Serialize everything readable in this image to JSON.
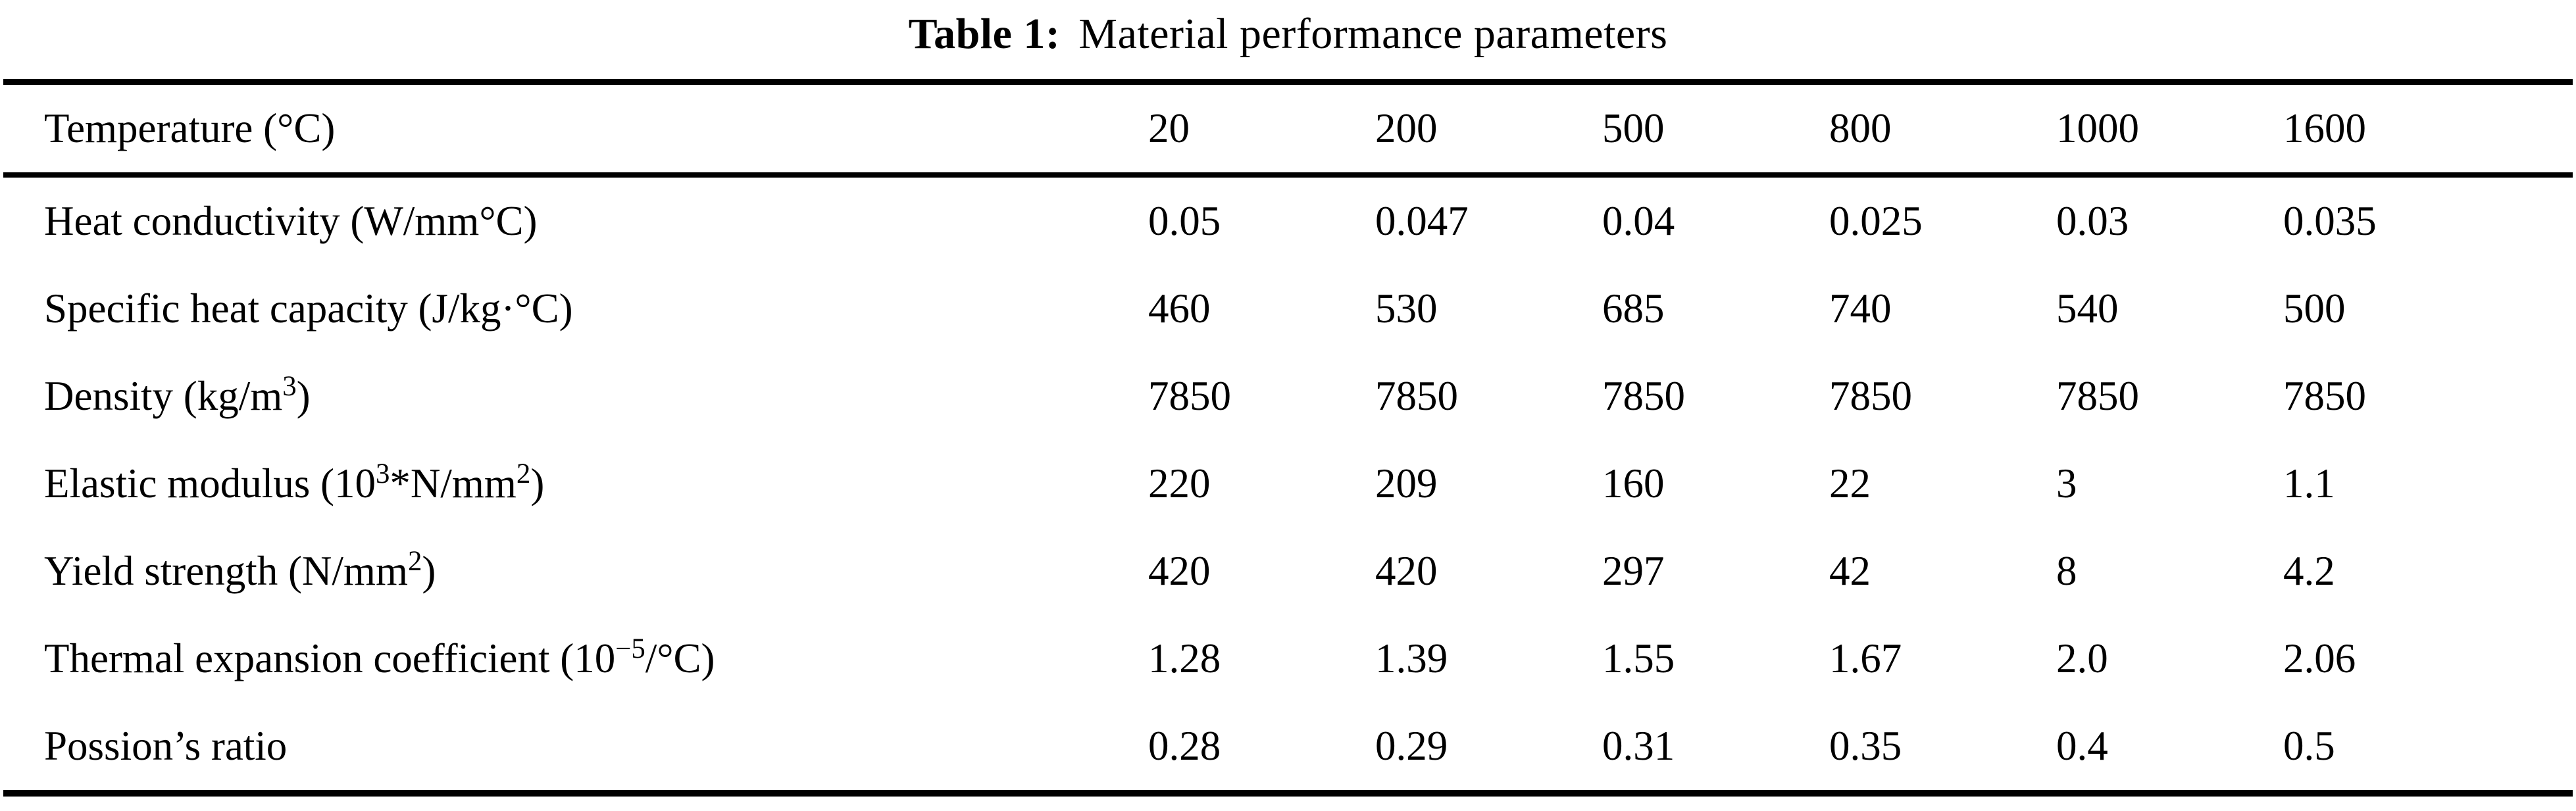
{
  "title": {
    "label": "Table 1:",
    "caption": "Material performance parameters"
  },
  "table": {
    "header": {
      "label": [
        {
          "text": "Temperature (°C)"
        }
      ],
      "values": [
        "20",
        "200",
        "500",
        "800",
        "1000",
        "1600"
      ]
    },
    "rows": [
      {
        "name": "heat-conductivity",
        "label": [
          {
            "text": "Heat conductivity (W/mm°C)"
          }
        ],
        "values": [
          "0.05",
          "0.047",
          "0.04",
          "0.025",
          "0.03",
          "0.035"
        ]
      },
      {
        "name": "specific-heat-capacity",
        "label": [
          {
            "text": "Specific heat capacity (J/kg·°C)"
          }
        ],
        "values": [
          "460",
          "530",
          "685",
          "740",
          "540",
          "500"
        ]
      },
      {
        "name": "density",
        "label": [
          {
            "text": "Density (kg/m"
          },
          {
            "sup": "3"
          },
          {
            "text": ")"
          }
        ],
        "values": [
          "7850",
          "7850",
          "7850",
          "7850",
          "7850",
          "7850"
        ]
      },
      {
        "name": "elastic-modulus",
        "label": [
          {
            "text": "Elastic modulus (10"
          },
          {
            "sup": "3"
          },
          {
            "text": "*N/mm"
          },
          {
            "sup": "2"
          },
          {
            "text": ")"
          }
        ],
        "values": [
          "220",
          "209",
          "160",
          "22",
          "3",
          "1.1"
        ]
      },
      {
        "name": "yield-strength",
        "label": [
          {
            "text": "Yield strength (N/mm"
          },
          {
            "sup": "2"
          },
          {
            "text": ")"
          }
        ],
        "values": [
          "420",
          "420",
          "297",
          "42",
          "8",
          "4.2"
        ]
      },
      {
        "name": "thermal-expansion-coefficient",
        "label": [
          {
            "text": "Thermal expansion coefficient (10"
          },
          {
            "sup": "−5"
          },
          {
            "text": "/°C)"
          }
        ],
        "values": [
          "1.28",
          "1.39",
          "1.55",
          "1.67",
          "2.0",
          "2.06"
        ]
      },
      {
        "name": "possions-ratio",
        "label": [
          {
            "text": "Possion’s ratio"
          }
        ],
        "values": [
          "0.28",
          "0.29",
          "0.31",
          "0.35",
          "0.4",
          "0.5"
        ]
      }
    ]
  },
  "chart_data": {
    "type": "table",
    "title": "Table 1: Material performance parameters",
    "categories": [
      20,
      200,
      500,
      800,
      1000,
      1600
    ],
    "category_label": "Temperature (°C)",
    "series": [
      {
        "name": "Heat conductivity (W/mm°C)",
        "values": [
          0.05,
          0.047,
          0.04,
          0.025,
          0.03,
          0.035
        ]
      },
      {
        "name": "Specific heat capacity (J/kg·°C)",
        "values": [
          460,
          530,
          685,
          740,
          540,
          500
        ]
      },
      {
        "name": "Density (kg/m^3)",
        "values": [
          7850,
          7850,
          7850,
          7850,
          7850,
          7850
        ]
      },
      {
        "name": "Elastic modulus (10^3*N/mm^2)",
        "values": [
          220,
          209,
          160,
          22,
          3,
          1.1
        ]
      },
      {
        "name": "Yield strength (N/mm^2)",
        "values": [
          420,
          420,
          297,
          42,
          8,
          4.2
        ]
      },
      {
        "name": "Thermal expansion coefficient (10^-5/°C)",
        "values": [
          1.28,
          1.39,
          1.55,
          1.67,
          2.0,
          2.06
        ]
      },
      {
        "name": "Possion’s ratio",
        "values": [
          0.28,
          0.29,
          0.31,
          0.35,
          0.4,
          0.5
        ]
      }
    ]
  }
}
